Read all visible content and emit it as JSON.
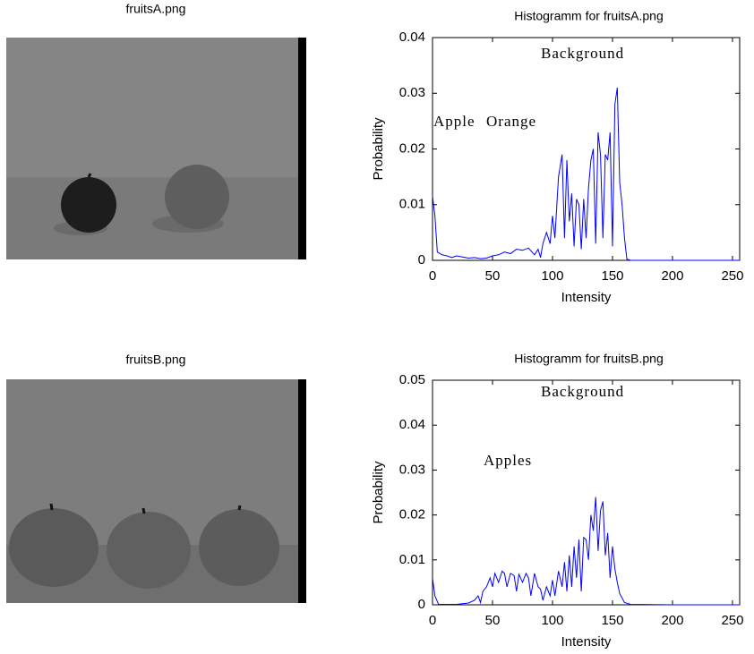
{
  "images": [
    {
      "title": "fruitsA.png"
    },
    {
      "title": "fruitsB.png"
    }
  ],
  "chart_data": [
    {
      "type": "line",
      "title": "Histogramm for fruitsA.png",
      "xlabel": "Intensity",
      "ylabel": "Probability",
      "x": [
        0,
        2,
        4,
        8,
        12,
        16,
        20,
        25,
        30,
        35,
        40,
        45,
        50,
        55,
        60,
        65,
        70,
        75,
        80,
        85,
        88,
        90,
        92,
        95,
        98,
        100,
        102,
        105,
        108,
        110,
        112,
        114,
        116,
        118,
        120,
        122,
        124,
        126,
        128,
        130,
        132,
        134,
        136,
        138,
        140,
        142,
        144,
        146,
        148,
        150,
        152,
        154,
        156,
        158,
        160,
        162,
        165,
        200,
        256
      ],
      "series": [
        {
          "color": "#0000ff",
          "values": [
            0.0115,
            0.008,
            0.0015,
            0.001,
            0.0008,
            0.0005,
            0.0008,
            0.0006,
            0.0004,
            0.0005,
            0.0003,
            0.0004,
            0.0008,
            0.001,
            0.0015,
            0.0012,
            0.002,
            0.0018,
            0.0022,
            0.001,
            0.002,
            0.0005,
            0.003,
            0.005,
            0.003,
            0.008,
            0.004,
            0.015,
            0.019,
            0.004,
            0.018,
            0.007,
            0.012,
            0.0025,
            0.011,
            0.01,
            0.002,
            0.011,
            0.004,
            0.013,
            0.018,
            0.02,
            0.003,
            0.023,
            0.019,
            0.004,
            0.019,
            0.018,
            0.023,
            0.0025,
            0.028,
            0.031,
            0.014,
            0.01,
            0.004,
            0.0002,
            0,
            0,
            0
          ]
        }
      ],
      "xlim": [
        0,
        256
      ],
      "ylim": [
        0,
        0.04
      ],
      "xticks": [
        0,
        50,
        100,
        150,
        200,
        250
      ],
      "yticks": [
        0,
        0.01,
        0.02,
        0.03,
        0.04
      ],
      "annotations": [
        "Background",
        "Apple",
        "Orange"
      ]
    },
    {
      "type": "line",
      "title": "Histogramm for fruitsB.png",
      "xlabel": "Intensity",
      "ylabel": "Probability",
      "x": [
        0,
        2,
        5,
        20,
        30,
        35,
        38,
        40,
        42,
        45,
        48,
        50,
        52,
        55,
        58,
        60,
        62,
        65,
        68,
        70,
        72,
        75,
        78,
        80,
        82,
        85,
        88,
        90,
        92,
        95,
        98,
        100,
        102,
        105,
        108,
        110,
        112,
        114,
        116,
        118,
        120,
        122,
        124,
        126,
        128,
        130,
        132,
        134,
        136,
        138,
        140,
        142,
        144,
        146,
        148,
        150,
        152,
        154,
        156,
        160,
        165,
        200,
        256
      ],
      "series": [
        {
          "color": "#0000ff",
          "values": [
            0.006,
            0.002,
            0.0001,
            0.0001,
            0.0004,
            0.001,
            0.002,
            0.0005,
            0.003,
            0.004,
            0.006,
            0.004,
            0.007,
            0.005,
            0.0075,
            0.007,
            0.004,
            0.007,
            0.0065,
            0.003,
            0.0068,
            0.005,
            0.007,
            0.006,
            0.002,
            0.007,
            0.004,
            0.0035,
            0.001,
            0.004,
            0.002,
            0.0055,
            0.002,
            0.0075,
            0.004,
            0.0095,
            0.003,
            0.011,
            0.004,
            0.013,
            0.006,
            0.0145,
            0.003,
            0.015,
            0.0145,
            0.01,
            0.02,
            0.0165,
            0.024,
            0.012,
            0.021,
            0.023,
            0.011,
            0.016,
            0.006,
            0.013,
            0.008,
            0.005,
            0.0025,
            0.0005,
            0.0001,
            0,
            0
          ]
        }
      ],
      "xlim": [
        0,
        256
      ],
      "ylim": [
        0,
        0.05
      ],
      "xticks": [
        0,
        50,
        100,
        150,
        200,
        250
      ],
      "yticks": [
        0,
        0.01,
        0.02,
        0.03,
        0.04,
        0.05
      ],
      "annotations": [
        "Background",
        "Apples"
      ]
    }
  ]
}
